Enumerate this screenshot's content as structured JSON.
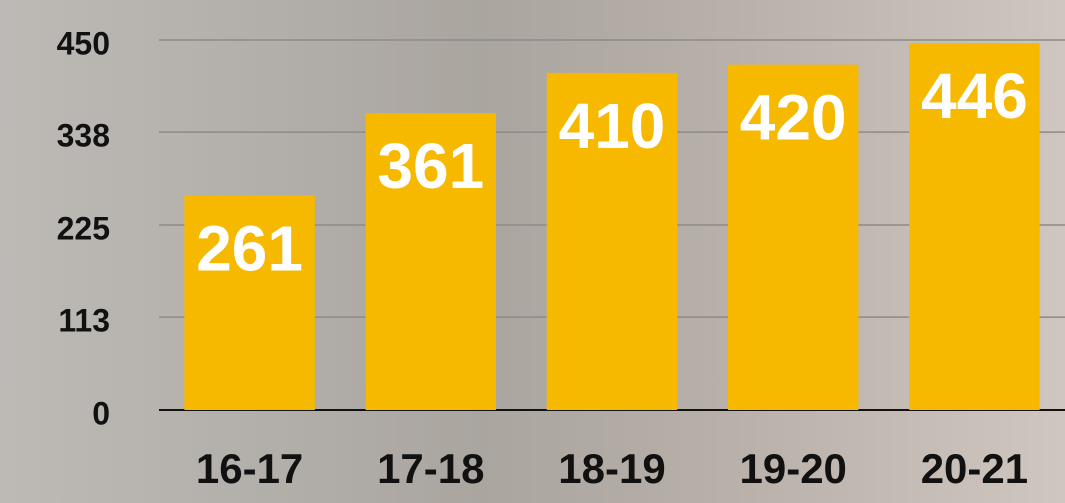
{
  "chart_data": {
    "type": "bar",
    "categories": [
      "16-17",
      "17-18",
      "18-19",
      "19-20",
      "20-21"
    ],
    "values": [
      261,
      361,
      410,
      420,
      446
    ],
    "color": "#f6b900",
    "ylim": [
      0,
      450
    ],
    "yticks": [
      0,
      113,
      225,
      338,
      450
    ],
    "grid": true
  }
}
